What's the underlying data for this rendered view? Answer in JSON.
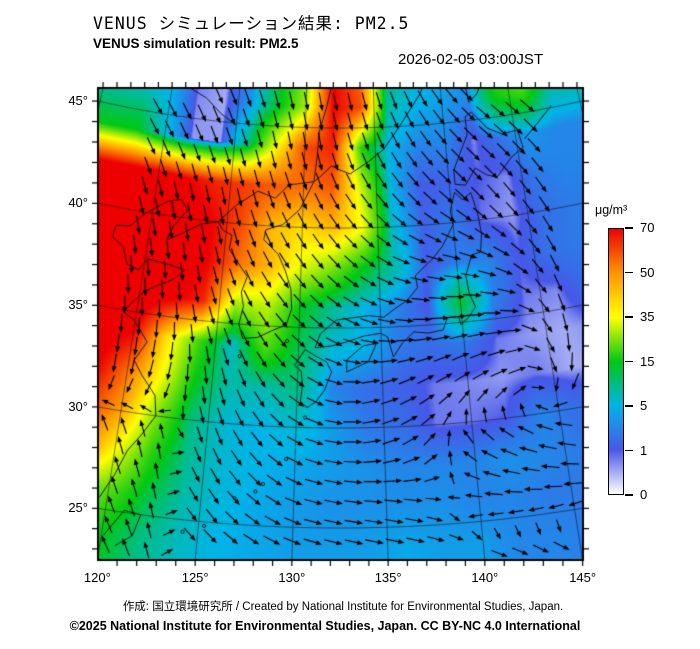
{
  "header": {
    "title_jp": "VENUS シミュレーション結果: PM2.5",
    "title_en": "VENUS simulation result: PM2.5",
    "datetime": "2026-02-05 03:00JST"
  },
  "footer": {
    "line1": "作成: 国立環境研究所 / Created by National Institute for Environmental Studies, Japan.",
    "line2": "©2025 National Institute for Environmental Studies, Japan. CC BY-NC 4.0 International"
  },
  "colorbar": {
    "unit": "μg/m³",
    "tick_values": [
      70,
      50,
      35,
      15,
      5,
      1,
      0
    ],
    "anchor_values": [
      0,
      1,
      5,
      15,
      35,
      50,
      70
    ],
    "anchor_colors": [
      "#ffffff",
      "#4857e8",
      "#00b4e8",
      "#00c814",
      "#ffff00",
      "#ff9600",
      "#ee0000"
    ]
  },
  "axes": {
    "lon_label_ticks": [
      120,
      125,
      130,
      135,
      140,
      145
    ],
    "lat_label_ticks": [
      25,
      30,
      35,
      40,
      45
    ],
    "minor_tick_deg": 1,
    "degree_symbol": "°"
  },
  "chart_data": {
    "type": "heatmap",
    "variable": "PM2.5 surface concentration with wind vectors",
    "projection": "conic (curved graticule), lon 120-145E, lat 25-45N labeled",
    "legend_position": "right",
    "grid_on": true,
    "pm25_grid": {
      "lons": [
        118,
        120,
        122,
        124,
        126,
        128,
        130,
        132,
        134,
        136,
        138,
        140,
        142,
        144,
        146,
        148
      ],
      "lats": [
        48,
        46,
        44,
        42,
        40,
        38,
        36,
        34,
        32,
        30,
        28,
        26,
        24,
        22
      ],
      "values": [
        [
          8,
          6,
          0.9,
          0.5,
          3,
          12,
          25,
          70,
          55,
          10,
          6,
          5,
          4,
          20,
          22,
          10
        ],
        [
          8,
          5,
          0.7,
          0.5,
          4,
          14,
          28,
          70,
          60,
          8,
          5,
          4,
          3,
          16,
          20,
          8
        ],
        [
          15,
          6,
          0.6,
          0.6,
          10,
          35,
          60,
          65,
          18,
          5,
          3,
          3,
          0.7,
          2.5,
          4,
          3
        ],
        [
          75,
          75,
          70,
          65,
          62,
          58,
          55,
          58,
          30,
          5,
          1.2,
          1.5,
          1,
          0.7,
          2.5,
          3
        ],
        [
          80,
          80,
          75,
          70,
          60,
          45,
          40,
          45,
          35,
          6,
          1.5,
          2.5,
          0.8,
          0.6,
          2,
          2.5
        ],
        [
          80,
          80,
          76,
          70,
          55,
          45,
          33,
          25,
          15,
          8,
          1.2,
          2.5,
          3,
          1,
          2.2,
          2.5
        ],
        [
          80,
          78,
          72,
          65,
          28,
          30,
          15,
          9,
          5,
          3,
          1,
          14,
          3,
          0.8,
          0.7,
          2
        ],
        [
          75,
          70,
          40,
          20,
          6,
          22,
          12,
          6,
          5,
          2.5,
          2,
          2.5,
          0.8,
          0.6,
          0.5,
          0.7
        ],
        [
          72,
          55,
          35,
          15,
          8,
          8,
          10,
          3,
          2,
          1.5,
          0.8,
          0.7,
          0.6,
          0.8,
          0.5,
          0.5
        ],
        [
          62,
          48,
          25,
          10,
          6,
          5,
          6,
          4,
          2.5,
          2,
          0.8,
          0.8,
          1,
          3,
          2,
          1.5
        ],
        [
          55,
          35,
          18,
          9,
          6,
          5,
          4.5,
          4,
          3.5,
          3,
          3,
          3,
          3.5,
          3,
          2.5,
          2
        ],
        [
          28,
          22,
          13,
          8,
          5.5,
          4.5,
          4,
          3.5,
          3.5,
          3.5,
          3.5,
          3,
          3,
          2.5,
          2.5,
          2
        ],
        [
          20,
          15,
          10,
          7,
          5,
          4.5,
          4,
          4,
          4,
          4.5,
          4,
          4,
          3,
          3,
          2.5,
          2
        ],
        [
          18,
          14,
          9,
          7,
          5,
          4.5,
          4,
          4,
          4,
          4.5,
          4,
          4,
          3,
          3,
          2.5,
          2
        ]
      ]
    },
    "wind": {
      "lons": [
        119,
        122,
        125,
        128,
        131,
        134,
        137,
        140,
        143,
        146
      ],
      "lats": [
        47,
        44,
        41,
        38,
        35,
        32,
        29,
        26,
        23
      ],
      "dir_deg_toward": [
        [
          -60,
          -62,
          -68,
          -75,
          -80,
          -78,
          -70,
          -55,
          -40,
          -35
        ],
        [
          -62,
          -66,
          -72,
          -78,
          -80,
          -72,
          -60,
          -48,
          -42,
          -45
        ],
        [
          -75,
          -80,
          -80,
          -70,
          -62,
          -52,
          -45,
          -40,
          -48,
          -55
        ],
        [
          -85,
          -85,
          -75,
          -60,
          -50,
          -38,
          -18,
          -10,
          -28,
          -60
        ],
        [
          -92,
          -90,
          -72,
          -55,
          -40,
          -18,
          0,
          8,
          0,
          -70
        ],
        [
          -100,
          -108,
          -82,
          -58,
          -28,
          10,
          28,
          35,
          22,
          -95
        ],
        [
          108,
          100,
          -72,
          -50,
          -18,
          5,
          35,
          140,
          160,
          172
        ],
        [
          112,
          105,
          -60,
          -38,
          -14,
          -6,
          -10,
          178,
          -178,
          -172
        ],
        [
          118,
          110,
          -45,
          -28,
          -18,
          -14,
          -14,
          -18,
          -22,
          -25
        ]
      ]
    },
    "coastlines": [
      {
        "name": "china-coast",
        "pts": [
          [
            117.8,
            23.6
          ],
          [
            118.6,
            24.5
          ],
          [
            119.6,
            25.6
          ],
          [
            120.2,
            26.8
          ],
          [
            120.7,
            28.1
          ],
          [
            121.3,
            28.9
          ],
          [
            122,
            30
          ],
          [
            121.8,
            31
          ],
          [
            120.9,
            31.9
          ],
          [
            120.3,
            32.6
          ],
          [
            120.9,
            33.6
          ],
          [
            119.9,
            34.6
          ],
          [
            119.2,
            34.9
          ],
          [
            119.6,
            35.4
          ],
          [
            120.3,
            36.1
          ],
          [
            120.9,
            36.4
          ],
          [
            122,
            36.9
          ],
          [
            122.6,
            37.4
          ],
          [
            121.5,
            37.6
          ],
          [
            120.2,
            37.7
          ],
          [
            119.7,
            37.1
          ],
          [
            118.9,
            37.3
          ],
          [
            118.5,
            38.1
          ],
          [
            117.7,
            38.5
          ],
          [
            117.8,
            39.1
          ],
          [
            118.7,
            39.2
          ],
          [
            119.5,
            39.9
          ],
          [
            120.9,
            40.7
          ],
          [
            121.8,
            40.9
          ],
          [
            122.3,
            40.4
          ],
          [
            121.5,
            39.5
          ],
          [
            121.2,
            38.8
          ],
          [
            122.1,
            39.2
          ],
          [
            123.3,
            39.8
          ],
          [
            124.4,
            40
          ]
        ]
      },
      {
        "name": "korea",
        "pts": [
          [
            124.4,
            40
          ],
          [
            124.8,
            39.6
          ],
          [
            125.4,
            39.4
          ],
          [
            125.3,
            38.7
          ],
          [
            126.2,
            37.8
          ],
          [
            126.6,
            37.4
          ],
          [
            126.3,
            36.6
          ],
          [
            126.5,
            35.9
          ],
          [
            126.3,
            35
          ],
          [
            126.6,
            34.3
          ],
          [
            127.5,
            34.4
          ],
          [
            128.4,
            34.8
          ],
          [
            129.2,
            35.1
          ],
          [
            129.5,
            35.9
          ],
          [
            129.4,
            36.9
          ],
          [
            129,
            37.8
          ],
          [
            128.5,
            38.6
          ],
          [
            127.5,
            39.3
          ],
          [
            127.6,
            39.8
          ],
          [
            128.7,
            40.1
          ],
          [
            129.8,
            40.9
          ],
          [
            130.7,
            42.3
          ]
        ]
      },
      {
        "name": "primorye",
        "pts": [
          [
            130.7,
            42.3
          ],
          [
            131.2,
            42.6
          ],
          [
            131.9,
            43.1
          ],
          [
            132.5,
            42.9
          ],
          [
            133.2,
            42.7
          ],
          [
            134.5,
            43.3
          ],
          [
            135.6,
            43.9
          ],
          [
            136.8,
            45
          ],
          [
            138.4,
            46.5
          ],
          [
            139.5,
            47.8
          ],
          [
            140,
            48.5
          ]
        ]
      },
      {
        "name": "nk-border",
        "pts": [
          [
            124.4,
            40
          ],
          [
            125.5,
            40.9
          ],
          [
            126.9,
            41.7
          ],
          [
            128.1,
            41.4
          ],
          [
            129,
            42.1
          ],
          [
            130.7,
            42.3
          ]
        ]
      },
      {
        "name": "ru-cn-border",
        "pts": [
          [
            132,
            47.5
          ],
          [
            131.5,
            46
          ],
          [
            131,
            44.8
          ],
          [
            130.9,
            43.6
          ],
          [
            130.7,
            42.3
          ]
        ]
      },
      {
        "name": "mongolia-border",
        "pts": [
          [
            117.8,
            46.6
          ],
          [
            119.7,
            46.7
          ],
          [
            121.2,
            46.5
          ],
          [
            122.6,
            46.1
          ],
          [
            123.8,
            45.4
          ],
          [
            125,
            44.9
          ]
        ]
      },
      {
        "name": "kyushu",
        "pts": [
          [
            130.4,
            33.9
          ],
          [
            131,
            33.6
          ],
          [
            131.7,
            33.3
          ],
          [
            132,
            32.8
          ],
          [
            131.6,
            31.9
          ],
          [
            131.1,
            31.3
          ],
          [
            130.6,
            31
          ],
          [
            130.2,
            31.3
          ],
          [
            130.3,
            32.1
          ],
          [
            130.2,
            32.8
          ],
          [
            129.8,
            33.1
          ],
          [
            130.4,
            33.9
          ]
        ]
      },
      {
        "name": "shikoku",
        "pts": [
          [
            132.9,
            32.8
          ],
          [
            134.2,
            33.3
          ],
          [
            134.7,
            34.2
          ],
          [
            133.9,
            34.1
          ],
          [
            132.9,
            33.4
          ],
          [
            132.9,
            32.8
          ]
        ]
      },
      {
        "name": "honshu",
        "pts": [
          [
            131,
            34
          ],
          [
            132,
            34.1
          ],
          [
            132.9,
            34.3
          ],
          [
            134,
            34.6
          ],
          [
            135,
            34.7
          ],
          [
            135.4,
            34.5
          ],
          [
            135.7,
            33.5
          ],
          [
            136.3,
            34.2
          ],
          [
            137,
            34.7
          ],
          [
            137.9,
            34.6
          ],
          [
            138.8,
            34.7
          ],
          [
            139.1,
            35.3
          ],
          [
            139.8,
            35.3
          ],
          [
            139.9,
            34.9
          ],
          [
            140.4,
            35.2
          ],
          [
            140.9,
            35.7
          ],
          [
            140.6,
            36.4
          ],
          [
            140.5,
            37.3
          ],
          [
            141,
            38.3
          ],
          [
            141.6,
            38.4
          ],
          [
            141.8,
            39.3
          ],
          [
            141.7,
            40.3
          ],
          [
            141.4,
            41.4
          ],
          [
            140.8,
            41.1
          ],
          [
            140.3,
            41.5
          ],
          [
            139.9,
            40.6
          ],
          [
            140,
            39.9
          ],
          [
            139.2,
            38.9
          ],
          [
            138.5,
            38.3
          ],
          [
            137.3,
            37.5
          ],
          [
            137.4,
            36.9
          ],
          [
            136.7,
            36.3
          ],
          [
            135.9,
            35.9
          ],
          [
            135.2,
            35.5
          ],
          [
            134.3,
            35.6
          ],
          [
            133.2,
            35.5
          ],
          [
            132.3,
            35.4
          ],
          [
            131.3,
            34.7
          ],
          [
            131,
            34
          ]
        ]
      },
      {
        "name": "hokkaido",
        "pts": [
          [
            140.4,
            42.6
          ],
          [
            140.4,
            41.9
          ],
          [
            141.1,
            41.8
          ],
          [
            141.9,
            42.6
          ],
          [
            142.6,
            42.2
          ],
          [
            143.3,
            42
          ],
          [
            144.5,
            42.9
          ],
          [
            145.4,
            43.3
          ],
          [
            145.2,
            44.2
          ],
          [
            144.1,
            44.1
          ],
          [
            143.1,
            44.5
          ],
          [
            142.1,
            45.4
          ],
          [
            141.6,
            45.2
          ],
          [
            141.6,
            44.3
          ],
          [
            140.8,
            43.2
          ],
          [
            140.4,
            42.6
          ]
        ]
      },
      {
        "name": "sakhalin",
        "pts": [
          [
            142,
            45.9
          ],
          [
            141.8,
            47.1
          ],
          [
            142.3,
            48.3
          ],
          [
            143.6,
            48.5
          ],
          [
            143.3,
            47.2
          ],
          [
            142.7,
            46.3
          ],
          [
            142,
            45.9
          ]
        ]
      },
      {
        "name": "kuril",
        "pts": [
          [
            145.6,
            43.7
          ],
          [
            146.6,
            44.3
          ],
          [
            147.9,
            45.1
          ]
        ]
      },
      {
        "name": "taiwan-north",
        "pts": [
          [
            120.1,
            23.7
          ],
          [
            121,
            25.1
          ],
          [
            121.9,
            25
          ],
          [
            121.6,
            23.9
          ],
          [
            120.8,
            23.3
          ]
        ]
      }
    ],
    "island_dots": [
      [
        124.2,
        24.4
      ],
      [
        125.3,
        24.8
      ],
      [
        126.8,
        26.3
      ],
      [
        127.9,
        26.7
      ],
      [
        128.3,
        27.1
      ],
      [
        129.5,
        28.4
      ],
      [
        130.5,
        30.5
      ],
      [
        126.5,
        33.4
      ],
      [
        129.3,
        34.3
      ]
    ]
  }
}
